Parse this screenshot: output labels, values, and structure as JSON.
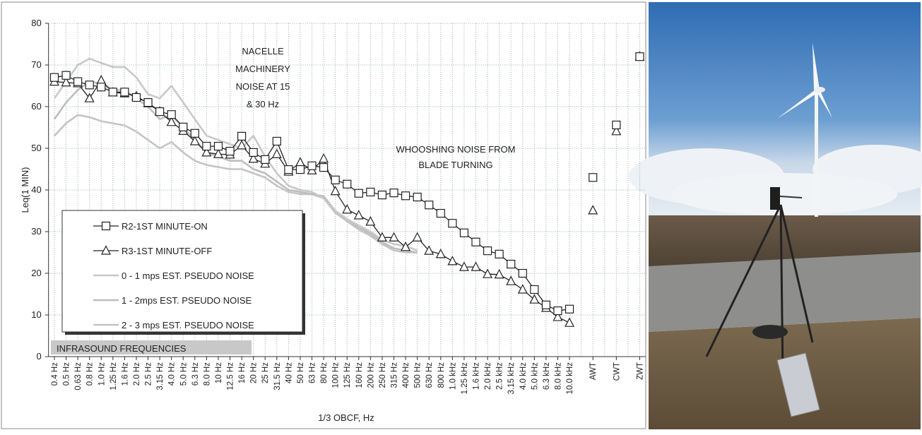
{
  "chart_data": {
    "type": "line",
    "y_label": "Leq(1 MIN)",
    "x_label": "1/3 OBCF, Hz",
    "categories": [
      "0.4 Hz",
      "0.5 Hz",
      "0.63 Hz",
      "0.8 Hz",
      "1.0 Hz",
      "1.25 Hz",
      "1.6 Hz",
      "2.0 Hz",
      "2.5 Hz",
      "3.15 Hz",
      "4.0 Hz",
      "5.0 Hz",
      "6.3 Hz",
      "8.0 Hz",
      "10 Hz",
      "12.5 Hz",
      "16 Hz",
      "20 Hz",
      "25 Hz",
      "31.5 Hz",
      "40 Hz",
      "50 Hz",
      "63 Hz",
      "80 Hz",
      "100 Hz",
      "125 Hz",
      "160 Hz",
      "200 Hz",
      "250 Hz",
      "315 Hz",
      "400 Hz",
      "500 Hz",
      "630 Hz",
      "800 Hz",
      "1.0 kHz",
      "1.25 kHz",
      "1.6 kHz",
      "2.0 kHz",
      "2.5 kHz",
      "3.15 kHz",
      "4.0 kHz",
      "5.0 kHz",
      "6.3 kHz",
      "8.0 kHz",
      "10.0 kHz",
      null,
      "AWT",
      null,
      "CWT",
      null,
      "ZWT"
    ],
    "ylim": [
      0,
      80
    ],
    "yticks": [
      0,
      10,
      20,
      30,
      40,
      50,
      60,
      70,
      80
    ],
    "grid": true,
    "series": [
      {
        "name": "R2-1ST MINUTE-ON",
        "color": "#222222",
        "marker": "square",
        "values": [
          67,
          67.5,
          66,
          65.2,
          64.7,
          63.5,
          63.5,
          62.2,
          61,
          58.8,
          58.1,
          55.1,
          53.6,
          50.5,
          50.5,
          49.3,
          52.9,
          49,
          47.3,
          51.7,
          44.9,
          44.9,
          45.8,
          45.4,
          42.4,
          41.4,
          39.2,
          39.5,
          38.8,
          39.3,
          38.6,
          38.3,
          36.4,
          34.4,
          32,
          29.7,
          27.5,
          25.4,
          24.6,
          22.2,
          20,
          16.1,
          12.4,
          11,
          11.4,
          null,
          43,
          null,
          55.6,
          null,
          72
        ]
      },
      {
        "name": "R3-1ST MINUTE-OFF",
        "color": "#222222",
        "marker": "triangle",
        "values": [
          66,
          65.8,
          65.6,
          62,
          66.3,
          63.4,
          63.2,
          62.5,
          60.8,
          58.8,
          56.3,
          54.2,
          51.7,
          49,
          48.6,
          48.5,
          50.7,
          47.5,
          46.3,
          48.6,
          44.4,
          46.6,
          44.7,
          47.5,
          39.7,
          35.3,
          33.9,
          32.4,
          28.6,
          28.6,
          26.3,
          28.6,
          25.4,
          24.6,
          22.9,
          21.5,
          21.5,
          19.8,
          19.7,
          18.1,
          16.1,
          13.7,
          11.7,
          9.5,
          8.1,
          null,
          35.1,
          null,
          54.1,
          null,
          72
        ]
      },
      {
        "name": "0 - 1 mps EST. PSEUDO NOISE",
        "color": "#c8c8c8",
        "marker": "none",
        "values": [
          62,
          66,
          70,
          71.5,
          70.5,
          69.5,
          69.5,
          67,
          63,
          62,
          65,
          61,
          57,
          53,
          52,
          51,
          50,
          53,
          48,
          44,
          41,
          40,
          39.5,
          38,
          35,
          33,
          31.5,
          30,
          28,
          27,
          26.5,
          25.5,
          null,
          null,
          null,
          null,
          null,
          null,
          null,
          null,
          null,
          null,
          null,
          null,
          null,
          null,
          null,
          null,
          null,
          null,
          null
        ]
      },
      {
        "name": "1 - 2mps EST. PSEUDO NOISE",
        "color": "#bdbdbd",
        "marker": "none",
        "values": [
          57,
          61,
          64,
          66,
          65.5,
          64,
          64,
          62,
          60,
          57,
          58,
          55,
          52,
          49,
          48,
          47,
          47,
          45,
          44,
          42,
          40,
          39.5,
          39,
          38.5,
          35,
          33,
          31,
          29.5,
          27.5,
          26,
          25.5,
          25,
          null,
          null,
          null,
          null,
          null,
          null,
          null,
          null,
          null,
          null,
          null,
          null,
          null,
          null,
          null,
          null,
          null,
          null,
          null
        ]
      },
      {
        "name": "2 - 3 mps EST. PSEUDO NOISE",
        "color": "#c4c4c4",
        "marker": "none",
        "values": [
          53,
          56,
          58,
          57.5,
          56.5,
          56,
          55.5,
          54,
          52,
          50,
          51.5,
          49,
          47,
          46,
          45.5,
          45,
          45,
          44,
          43,
          41,
          39.5,
          39,
          39,
          38,
          34.5,
          32.5,
          30.5,
          29,
          27,
          25.5,
          25,
          25,
          null,
          null,
          null,
          null,
          null,
          null,
          null,
          null,
          null,
          null,
          null,
          null,
          null,
          null,
          null,
          null,
          null,
          null,
          null
        ]
      }
    ],
    "annotations": [
      {
        "lines": [
          "NACELLE",
          "MACHINERY",
          "NOISE AT 15",
          "& 30 Hz"
        ]
      },
      {
        "lines": [
          "WHOOSHING NOISE FROM",
          "BLADE TURNING"
        ]
      },
      {
        "lines": [
          "INFRASOUND FREQUENCIES"
        ]
      }
    ]
  }
}
